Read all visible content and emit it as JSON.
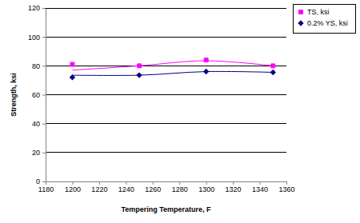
{
  "chart_data": {
    "type": "scatter",
    "x_label": "Tempering Temperature, F",
    "y_label": "Strength, ksi",
    "x": [
      1200,
      1250,
      1300,
      1350
    ],
    "series": [
      {
        "name": "TS, ksi",
        "color": "#ff00ff",
        "marker": "square",
        "values": [
          81,
          80,
          84,
          80
        ],
        "trend": [
          77,
          80,
          83.5,
          80
        ]
      },
      {
        "name": "0.2% YS, ksi",
        "color": "#000080",
        "marker": "diamond",
        "values": [
          72,
          73.5,
          76,
          75.5
        ],
        "trend": [
          73.5,
          73.5,
          76,
          75.5
        ]
      }
    ],
    "xlim": [
      1180,
      1360
    ],
    "xticks": [
      1180,
      1200,
      1220,
      1240,
      1260,
      1280,
      1300,
      1320,
      1340,
      1360
    ],
    "ylim": [
      0,
      120
    ],
    "yticks": [
      0,
      20,
      40,
      60,
      80,
      100,
      120
    ],
    "grid": true,
    "legend": "top-right"
  }
}
